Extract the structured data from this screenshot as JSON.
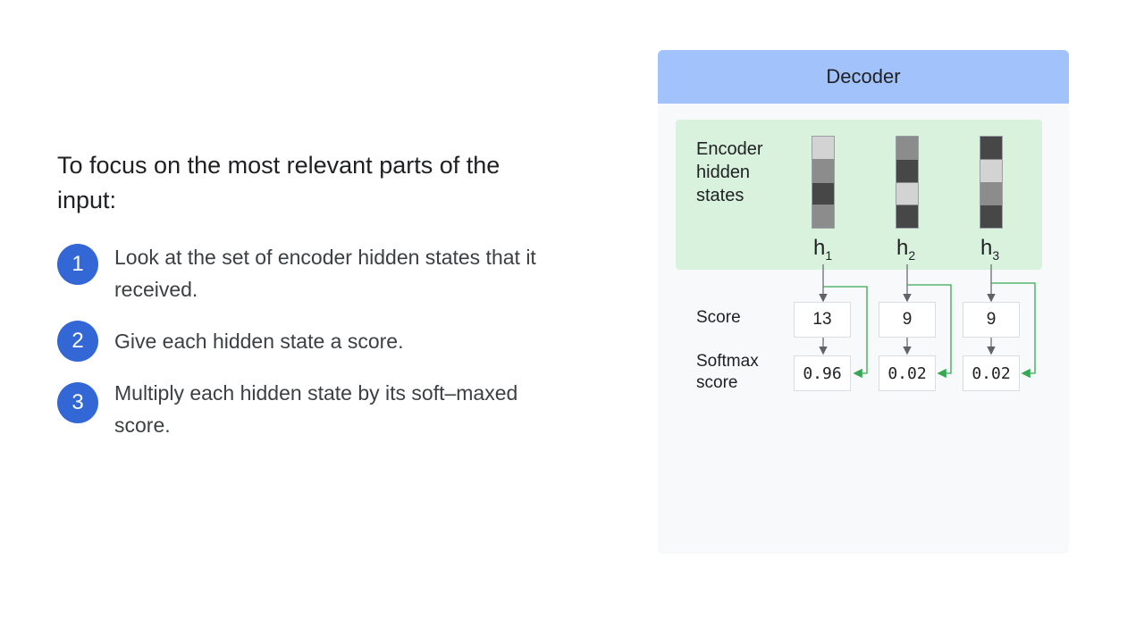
{
  "heading": "To focus on the most relevant parts of the input:",
  "steps": [
    {
      "num": "1",
      "text": "Look at the set of encoder hidden states that it received."
    },
    {
      "num": "2",
      "text": "Give each hidden state a score."
    },
    {
      "num": "3",
      "text": "Multiply each hidden state by its soft–maxed score."
    }
  ],
  "decoder": {
    "title": "Decoder",
    "encoder_label": "Encoder hidden states",
    "score_label": "Score",
    "softmax_label": "Softmax score",
    "states": [
      {
        "h": "h",
        "sub": "1",
        "score": "13",
        "softmax": "0.96",
        "cells": [
          "#d3d3d3",
          "#8c8c8c",
          "#474747",
          "#8c8c8c"
        ]
      },
      {
        "h": "h",
        "sub": "2",
        "score": "9",
        "softmax": "0.02",
        "cells": [
          "#8c8c8c",
          "#474747",
          "#d3d3d3",
          "#474747"
        ]
      },
      {
        "h": "h",
        "sub": "3",
        "score": "9",
        "softmax": "0.02",
        "cells": [
          "#474747",
          "#d3d3d3",
          "#8c8c8c",
          "#474747"
        ]
      }
    ],
    "colors": {
      "header": "#a1c2fa",
      "encoder_bg": "#d9f2dd",
      "arrow_gray": "#5f6368",
      "arrow_green": "#34a853",
      "step_badge": "#3367d6"
    }
  }
}
